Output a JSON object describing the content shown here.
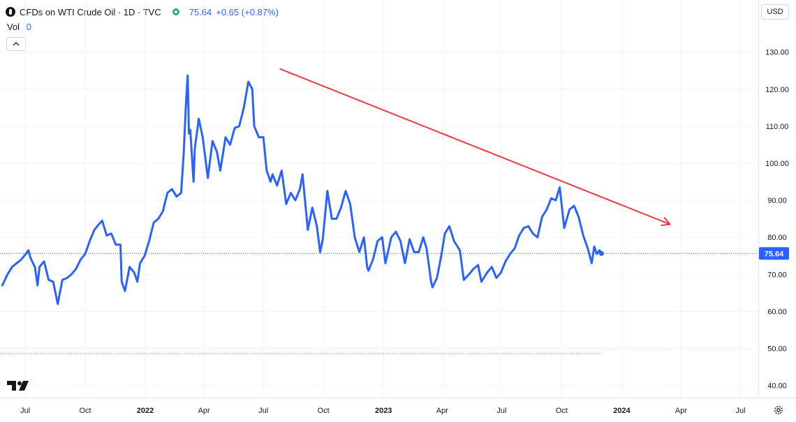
{
  "header": {
    "title": "CFDs on WTI Crude Oil · 1D · TVC",
    "last_price": "75.64",
    "change": "+0.65 (+0.87%)",
    "market_status_color": "#26a69a",
    "logo_icon": "circle-logo-icon"
  },
  "volume": {
    "label": "Vol",
    "value": "0"
  },
  "controls": {
    "currency": "USD",
    "collapse_icon": "chevron-up-icon",
    "settings_icon": "gear-icon"
  },
  "colors": {
    "series": "#2962ff",
    "trendline": "#f23645",
    "grid": "#f0f3fa",
    "price_label_bg": "#2962ff"
  },
  "chart_data": {
    "type": "line",
    "ylim": [
      36,
      135
    ],
    "y_ticks": [
      "130.00",
      "120.00",
      "110.00",
      "100.00",
      "90.00",
      "80.00",
      "70.00",
      "60.00",
      "50.00",
      "40.00"
    ],
    "y_tick_values": [
      130,
      120,
      110,
      100,
      90,
      80,
      70,
      60,
      50,
      40
    ],
    "x_ticks": [
      {
        "label": "Jul",
        "date": "2021-07-01"
      },
      {
        "label": "Oct",
        "date": "2021-10-01"
      },
      {
        "label": "2022",
        "date": "2022-01-01"
      },
      {
        "label": "Apr",
        "date": "2022-04-01"
      },
      {
        "label": "Jul",
        "date": "2022-07-01"
      },
      {
        "label": "Oct",
        "date": "2022-10-01"
      },
      {
        "label": "2023",
        "date": "2023-01-01"
      },
      {
        "label": "Apr",
        "date": "2023-04-01"
      },
      {
        "label": "Jul",
        "date": "2023-07-01"
      },
      {
        "label": "Oct",
        "date": "2023-10-01"
      },
      {
        "label": "2024",
        "date": "2024-01-01"
      },
      {
        "label": "Apr",
        "date": "2024-04-01"
      },
      {
        "label": "Jul",
        "date": "2024-07-01"
      }
    ],
    "last_price_label": "75.64",
    "last_price": 75.64,
    "lower_dotted_level": 48.6,
    "series": [
      {
        "points": [
          [
            "2021-05-27",
            67
          ],
          [
            "2021-06-04",
            70
          ],
          [
            "2021-06-11",
            72
          ],
          [
            "2021-06-18",
            73
          ],
          [
            "2021-06-25",
            74
          ],
          [
            "2021-07-02",
            75.5
          ],
          [
            "2021-07-06",
            76.5
          ],
          [
            "2021-07-09",
            74.5
          ],
          [
            "2021-07-16",
            72
          ],
          [
            "2021-07-20",
            67
          ],
          [
            "2021-07-23",
            72
          ],
          [
            "2021-07-30",
            73.5
          ],
          [
            "2021-08-06",
            68.5
          ],
          [
            "2021-08-13",
            68
          ],
          [
            "2021-08-20",
            62
          ],
          [
            "2021-08-27",
            68.5
          ],
          [
            "2021-09-03",
            69
          ],
          [
            "2021-09-10",
            70
          ],
          [
            "2021-09-17",
            71.5
          ],
          [
            "2021-09-24",
            74
          ],
          [
            "2021-10-01",
            75.5
          ],
          [
            "2021-10-08",
            79
          ],
          [
            "2021-10-15",
            82
          ],
          [
            "2021-10-22",
            83.5
          ],
          [
            "2021-10-27",
            84.5
          ],
          [
            "2021-11-03",
            80.5
          ],
          [
            "2021-11-10",
            81
          ],
          [
            "2021-11-17",
            78
          ],
          [
            "2021-11-24",
            78
          ],
          [
            "2021-11-26",
            68
          ],
          [
            "2021-12-01",
            65.5
          ],
          [
            "2021-12-08",
            72
          ],
          [
            "2021-12-15",
            70.5
          ],
          [
            "2021-12-20",
            68
          ],
          [
            "2021-12-24",
            73
          ],
          [
            "2021-12-31",
            75
          ],
          [
            "2022-01-07",
            79
          ],
          [
            "2022-01-14",
            84
          ],
          [
            "2022-01-21",
            85
          ],
          [
            "2022-01-28",
            87
          ],
          [
            "2022-02-04",
            92
          ],
          [
            "2022-02-11",
            93
          ],
          [
            "2022-02-18",
            91
          ],
          [
            "2022-02-25",
            92
          ],
          [
            "2022-03-01",
            103
          ],
          [
            "2022-03-04",
            115
          ],
          [
            "2022-03-07",
            123.7
          ],
          [
            "2022-03-09",
            108
          ],
          [
            "2022-03-11",
            109
          ],
          [
            "2022-03-16",
            95
          ],
          [
            "2022-03-18",
            104
          ],
          [
            "2022-03-24",
            112
          ],
          [
            "2022-03-30",
            107
          ],
          [
            "2022-04-07",
            96
          ],
          [
            "2022-04-14",
            106
          ],
          [
            "2022-04-21",
            103
          ],
          [
            "2022-04-26",
            98
          ],
          [
            "2022-05-04",
            107
          ],
          [
            "2022-05-11",
            105
          ],
          [
            "2022-05-18",
            109.5
          ],
          [
            "2022-05-25",
            110
          ],
          [
            "2022-06-01",
            115
          ],
          [
            "2022-06-08",
            122
          ],
          [
            "2022-06-14",
            120
          ],
          [
            "2022-06-17",
            110
          ],
          [
            "2022-06-24",
            107
          ],
          [
            "2022-07-01",
            107
          ],
          [
            "2022-07-06",
            98
          ],
          [
            "2022-07-12",
            95
          ],
          [
            "2022-07-15",
            97
          ],
          [
            "2022-07-22",
            94
          ],
          [
            "2022-07-29",
            98
          ],
          [
            "2022-08-05",
            89
          ],
          [
            "2022-08-12",
            92
          ],
          [
            "2022-08-19",
            90
          ],
          [
            "2022-08-26",
            93
          ],
          [
            "2022-08-30",
            97
          ],
          [
            "2022-09-07",
            82
          ],
          [
            "2022-09-14",
            88
          ],
          [
            "2022-09-21",
            83
          ],
          [
            "2022-09-26",
            76
          ],
          [
            "2022-09-30",
            79.5
          ],
          [
            "2022-10-07",
            92.5
          ],
          [
            "2022-10-14",
            85
          ],
          [
            "2022-10-21",
            85
          ],
          [
            "2022-10-28",
            88
          ],
          [
            "2022-11-04",
            92.5
          ],
          [
            "2022-11-11",
            89
          ],
          [
            "2022-11-18",
            80
          ],
          [
            "2022-11-25",
            76
          ],
          [
            "2022-12-02",
            80
          ],
          [
            "2022-12-07",
            72
          ],
          [
            "2022-12-09",
            71
          ],
          [
            "2022-12-16",
            74
          ],
          [
            "2022-12-23",
            79
          ],
          [
            "2022-12-30",
            80
          ],
          [
            "2023-01-04",
            73
          ],
          [
            "2023-01-13",
            80
          ],
          [
            "2023-01-20",
            81.5
          ],
          [
            "2023-01-27",
            79
          ],
          [
            "2023-02-03",
            73
          ],
          [
            "2023-02-10",
            79.5
          ],
          [
            "2023-02-17",
            76
          ],
          [
            "2023-02-24",
            76
          ],
          [
            "2023-03-03",
            80
          ],
          [
            "2023-03-08",
            77
          ],
          [
            "2023-03-15",
            68
          ],
          [
            "2023-03-17",
            66.5
          ],
          [
            "2023-03-24",
            69
          ],
          [
            "2023-03-31",
            75.5
          ],
          [
            "2023-04-05",
            81
          ],
          [
            "2023-04-12",
            83
          ],
          [
            "2023-04-19",
            79
          ],
          [
            "2023-04-28",
            76.5
          ],
          [
            "2023-05-04",
            68.5
          ],
          [
            "2023-05-12",
            70
          ],
          [
            "2023-05-19",
            71.5
          ],
          [
            "2023-05-26",
            72.5
          ],
          [
            "2023-05-31",
            68
          ],
          [
            "2023-06-09",
            70.5
          ],
          [
            "2023-06-16",
            72
          ],
          [
            "2023-06-23",
            69
          ],
          [
            "2023-06-30",
            70.5
          ],
          [
            "2023-07-07",
            73.5
          ],
          [
            "2023-07-14",
            75.5
          ],
          [
            "2023-07-21",
            77
          ],
          [
            "2023-07-28",
            80.5
          ],
          [
            "2023-08-04",
            82.5
          ],
          [
            "2023-08-11",
            83
          ],
          [
            "2023-08-18",
            81
          ],
          [
            "2023-08-25",
            80
          ],
          [
            "2023-09-01",
            85.5
          ],
          [
            "2023-09-08",
            87.5
          ],
          [
            "2023-09-15",
            90.5
          ],
          [
            "2023-09-22",
            90
          ],
          [
            "2023-09-28",
            93.5
          ],
          [
            "2023-10-05",
            82.5
          ],
          [
            "2023-10-13",
            87.5
          ],
          [
            "2023-10-20",
            88.5
          ],
          [
            "2023-10-27",
            85.5
          ],
          [
            "2023-11-03",
            80.5
          ],
          [
            "2023-11-10",
            77
          ],
          [
            "2023-11-16",
            73
          ],
          [
            "2023-11-20",
            77.5
          ],
          [
            "2023-11-24",
            75.5
          ],
          [
            "2023-11-28",
            76.5
          ],
          [
            "2023-12-01",
            75.64
          ]
        ]
      }
    ],
    "trendline": [
      [
        "2022-07-26",
        125.5
      ],
      [
        "2024-03-15",
        83.5
      ]
    ]
  }
}
